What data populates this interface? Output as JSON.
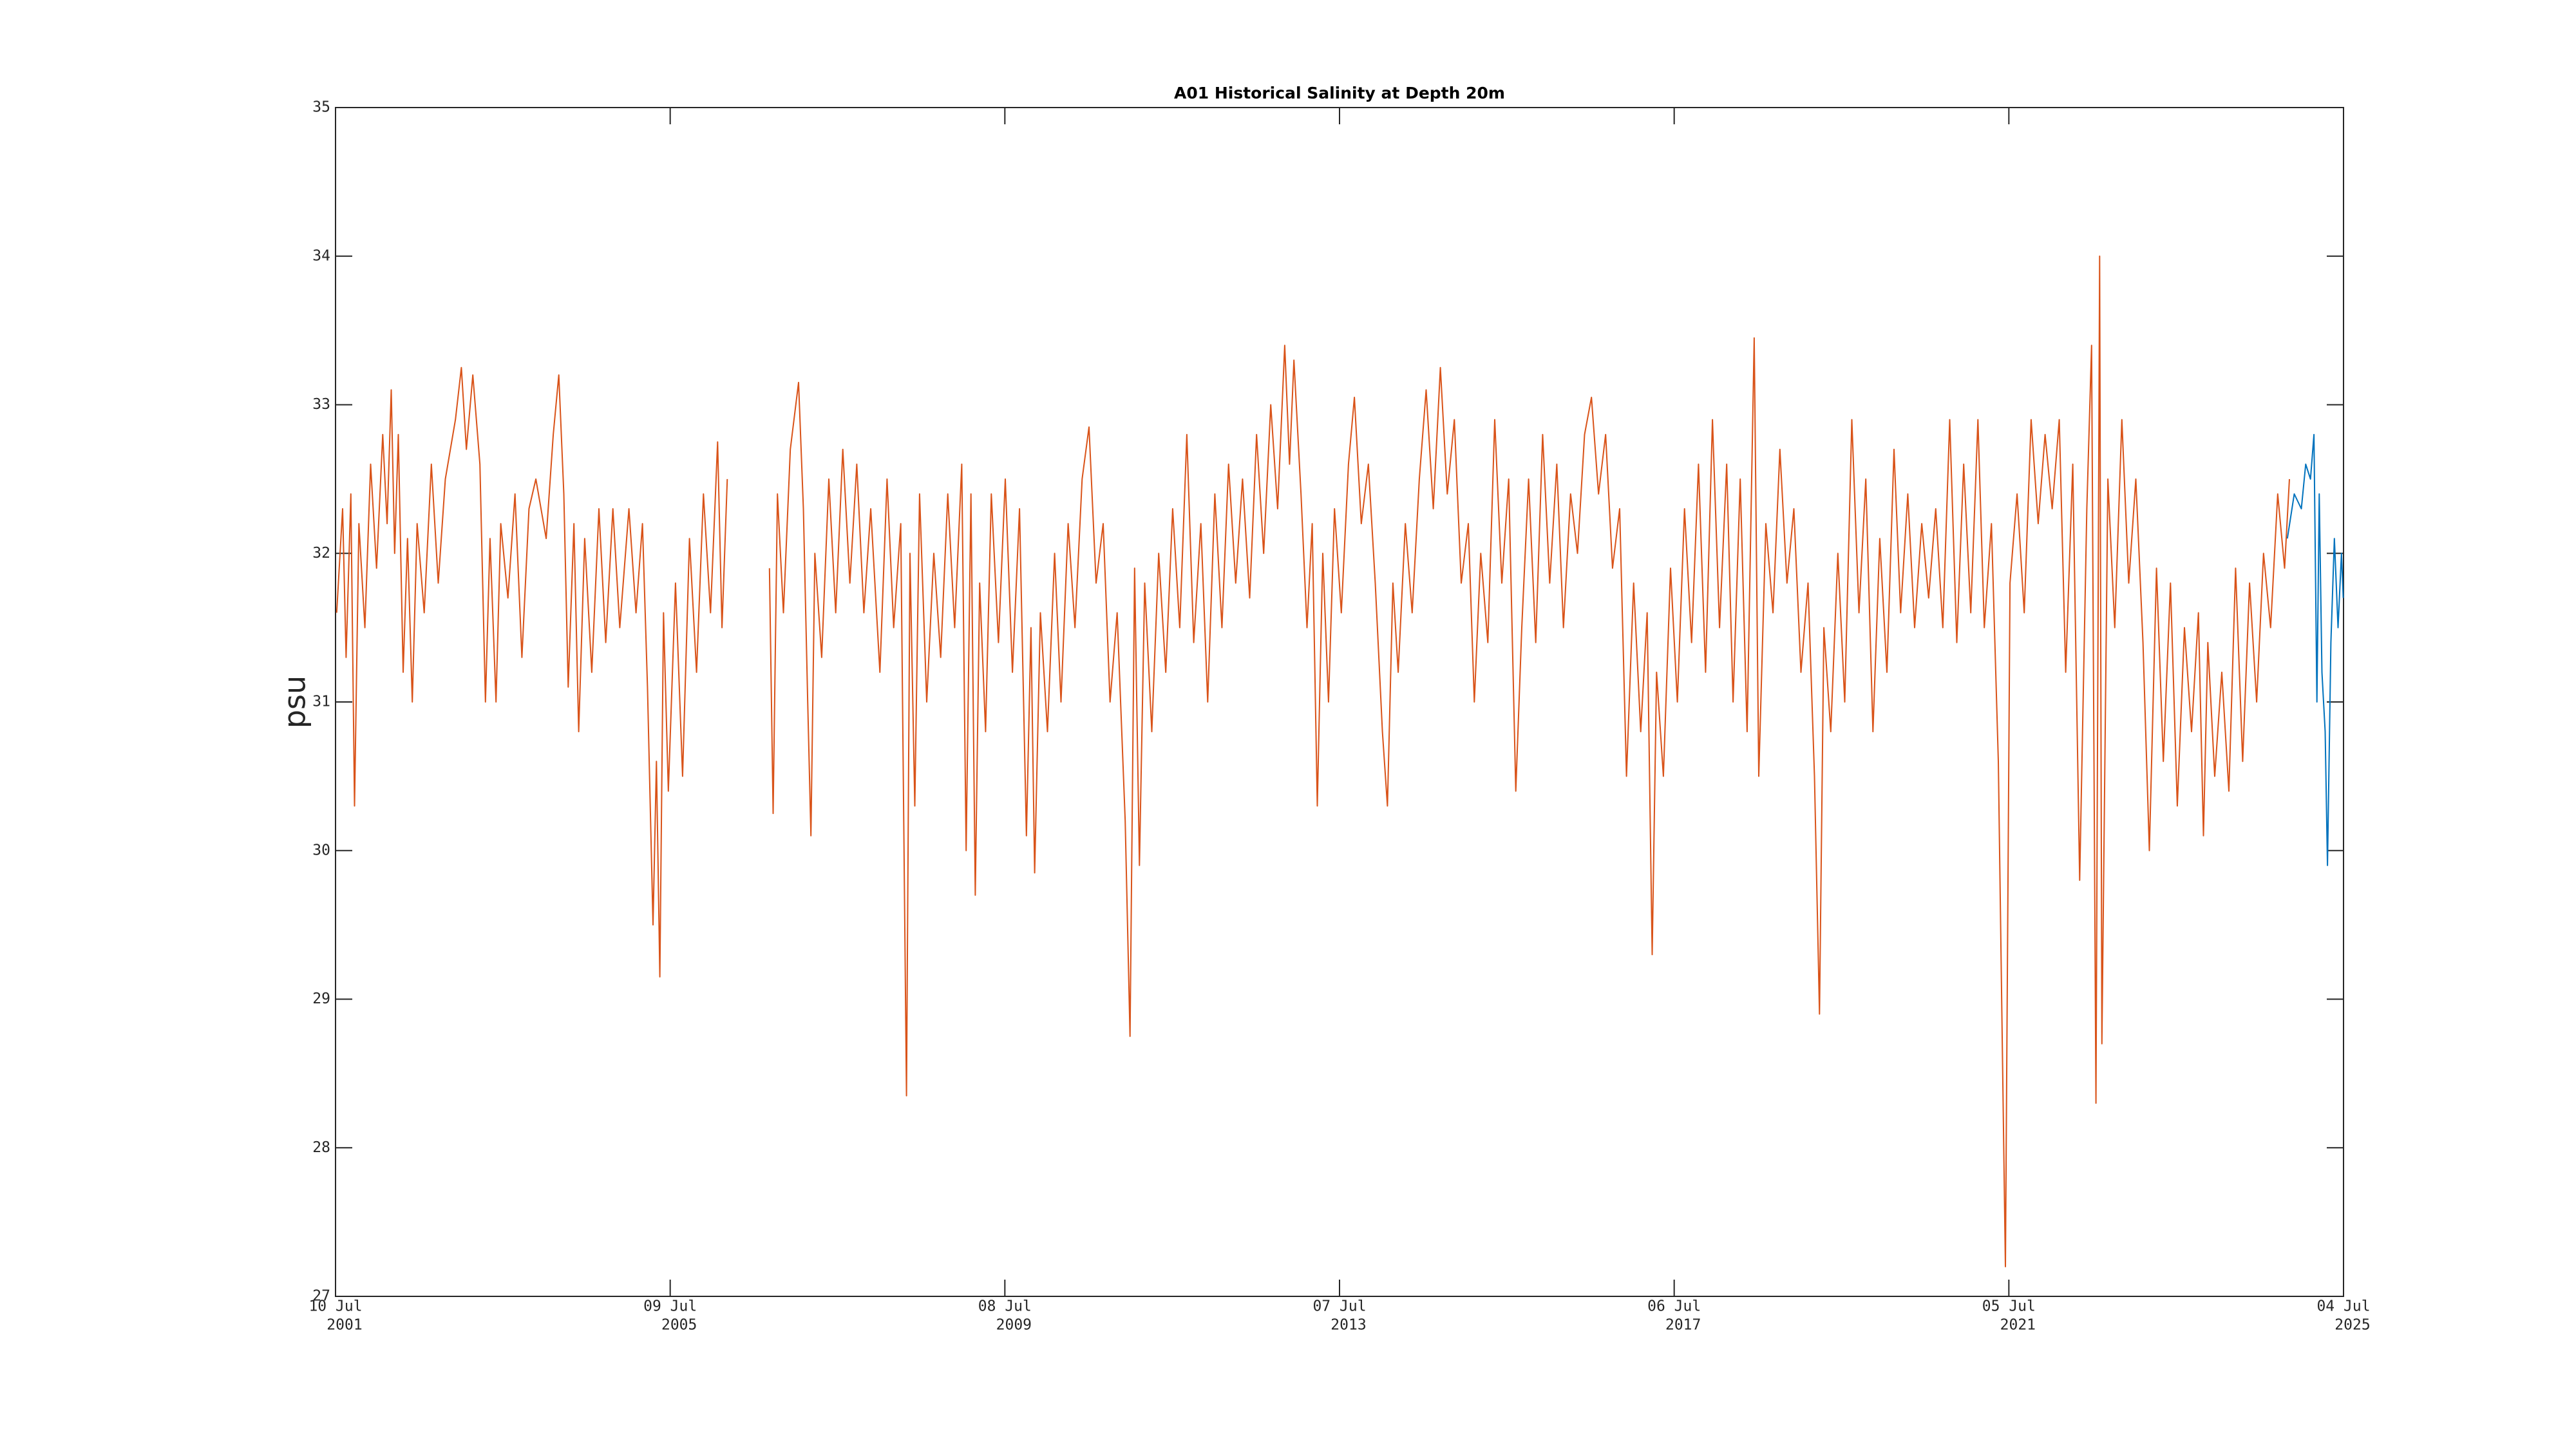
{
  "chart_data": {
    "type": "line",
    "title": "A01 Historical Salinity at Depth 20m",
    "y_label": "psu",
    "xlim": [
      "2001-07-10",
      "2025-07-04"
    ],
    "xticks": [
      {
        "value": "2001-07-10",
        "label": [
          "10 Jul",
          "2001"
        ]
      },
      {
        "value": "2005-07-09",
        "label": [
          "09 Jul",
          "2005"
        ]
      },
      {
        "value": "2009-07-08",
        "label": [
          "08 Jul",
          "2009"
        ]
      },
      {
        "value": "2013-07-07",
        "label": [
          "07 Jul",
          "2013"
        ]
      },
      {
        "value": "2017-07-06",
        "label": [
          "06 Jul",
          "2017"
        ]
      },
      {
        "value": "2021-07-05",
        "label": [
          "05 Jul",
          "2021"
        ]
      },
      {
        "value": "2025-07-04",
        "label": [
          "04 Jul",
          "2025"
        ]
      }
    ],
    "ylim": [
      27,
      35
    ],
    "yticks": [
      27,
      28,
      29,
      30,
      31,
      32,
      33,
      34,
      35
    ],
    "grid": false,
    "series": [
      {
        "color": "#D95319",
        "x": [
          "2001-07-15",
          "2001-08-10",
          "2001-08-25",
          "2001-09-15",
          "2001-10-01",
          "2001-10-20",
          "2001-11-15",
          "2001-12-10",
          "2002-01-05",
          "2002-02-01",
          "2002-02-20",
          "2002-03-10",
          "2002-03-25",
          "2002-04-10",
          "2002-05-01",
          "2002-05-20",
          "2002-06-10",
          "2002-07-01",
          "2002-08-01",
          "2002-09-01",
          "2002-10-01",
          "2002-11-01",
          "2002-12-15",
          "2003-01-10",
          "2003-02-01",
          "2003-03-01",
          "2003-04-01",
          "2003-04-25",
          "2003-05-15",
          "2003-06-10",
          "2003-07-01",
          "2003-08-01",
          "2003-09-01",
          "2003-10-01",
          "2003-11-01",
          "2003-12-01",
          "2004-01-15",
          "2004-02-15",
          "2004-03-10",
          "2004-04-01",
          "2004-04-20",
          "2004-05-15",
          "2004-06-05",
          "2004-07-01",
          "2004-08-01",
          "2004-09-01",
          "2004-10-01",
          "2004-11-01",
          "2004-12-01",
          "2005-01-10",
          "2005-02-10",
          "2005-03-10",
          "2005-04-01",
          "2005-04-25",
          "2005-05-10",
          "2005-05-25",
          "2005-06-10",
          "2005-07-01",
          "2005-08-01",
          "2005-09-01",
          "2005-10-01",
          "2005-11-01",
          "2005-12-01",
          "2006-01-01",
          "2006-02-01",
          "2006-02-20",
          "2006-03-15",
          "2006-05-15",
          "2006-09-15",
          "2006-10-01",
          "2006-10-20",
          "2006-11-15",
          "2006-12-15",
          "2007-01-20",
          "2007-02-10",
          "2007-03-01",
          "2007-03-15",
          "2007-04-01",
          "2007-05-01",
          "2007-06-01",
          "2007-07-01",
          "2007-08-01",
          "2007-09-01",
          "2007-10-01",
          "2007-11-01",
          "2007-12-01",
          "2008-01-10",
          "2008-02-10",
          "2008-03-10",
          "2008-04-10",
          "2008-05-05",
          "2008-05-20",
          "2008-06-10",
          "2008-07-01",
          "2008-08-01",
          "2008-09-01",
          "2008-10-01",
          "2008-11-01",
          "2008-12-01",
          "2009-01-01",
          "2009-01-20",
          "2009-02-10",
          "2009-03-01",
          "2009-03-20",
          "2009-04-15",
          "2009-05-10",
          "2009-06-10",
          "2009-07-10",
          "2009-08-10",
          "2009-09-10",
          "2009-10-10",
          "2009-10-30",
          "2009-11-15",
          "2009-12-10",
          "2010-01-10",
          "2010-02-10",
          "2010-03-10",
          "2010-04-10",
          "2010-05-10",
          "2010-06-10",
          "2010-07-10",
          "2010-08-10",
          "2010-09-10",
          "2010-10-10",
          "2010-11-10",
          "2010-12-15",
          "2011-01-05",
          "2011-01-25",
          "2011-02-15",
          "2011-03-10",
          "2011-04-10",
          "2011-05-10",
          "2011-06-10",
          "2011-07-10",
          "2011-08-10",
          "2011-09-10",
          "2011-10-10",
          "2011-11-10",
          "2011-12-10",
          "2012-01-10",
          "2012-02-10",
          "2012-03-10",
          "2012-04-10",
          "2012-05-10",
          "2012-06-10",
          "2012-07-10",
          "2012-08-10",
          "2012-09-10",
          "2012-10-10",
          "2012-11-10",
          "2012-12-01",
          "2012-12-20",
          "2013-01-20",
          "2013-02-15",
          "2013-03-10",
          "2013-04-01",
          "2013-04-25",
          "2013-05-20",
          "2013-06-15",
          "2013-07-15",
          "2013-08-15",
          "2013-09-10",
          "2013-10-10",
          "2013-11-10",
          "2013-12-10",
          "2014-01-10",
          "2014-02-01",
          "2014-02-25",
          "2014-03-20",
          "2014-04-20",
          "2014-05-20",
          "2014-06-20",
          "2014-07-20",
          "2014-08-20",
          "2014-09-20",
          "2014-10-20",
          "2014-11-20",
          "2014-12-20",
          "2015-01-20",
          "2015-02-15",
          "2015-03-15",
          "2015-04-15",
          "2015-05-15",
          "2015-06-15",
          "2015-07-15",
          "2015-08-15",
          "2015-09-10",
          "2015-10-10",
          "2015-11-10",
          "2015-12-10",
          "2016-01-10",
          "2016-02-10",
          "2016-03-10",
          "2016-04-10",
          "2016-05-10",
          "2016-06-10",
          "2016-07-10",
          "2016-08-10",
          "2016-09-10",
          "2016-10-10",
          "2016-11-10",
          "2016-12-10",
          "2017-01-10",
          "2017-02-10",
          "2017-03-10",
          "2017-04-01",
          "2017-04-20",
          "2017-05-20",
          "2017-06-20",
          "2017-07-20",
          "2017-08-20",
          "2017-09-20",
          "2017-10-20",
          "2017-11-20",
          "2017-12-20",
          "2018-01-20",
          "2018-02-20",
          "2018-03-20",
          "2018-04-20",
          "2018-05-20",
          "2018-06-20",
          "2018-07-10",
          "2018-08-10",
          "2018-09-10",
          "2018-10-10",
          "2018-11-10",
          "2018-12-10",
          "2019-01-10",
          "2019-02-10",
          "2019-03-10",
          "2019-04-01",
          "2019-04-20",
          "2019-05-20",
          "2019-06-20",
          "2019-07-20",
          "2019-08-20",
          "2019-09-20",
          "2019-10-20",
          "2019-11-20",
          "2019-12-20",
          "2020-01-20",
          "2020-02-20",
          "2020-03-20",
          "2020-04-20",
          "2020-05-20",
          "2020-06-20",
          "2020-07-20",
          "2020-08-20",
          "2020-09-20",
          "2020-10-20",
          "2020-11-20",
          "2020-12-20",
          "2021-01-20",
          "2021-02-20",
          "2021-03-20",
          "2021-04-20",
          "2021-05-20",
          "2021-06-20",
          "2021-07-10",
          "2021-08-10",
          "2021-09-10",
          "2021-10-10",
          "2021-11-10",
          "2021-12-10",
          "2022-01-10",
          "2022-02-10",
          "2022-03-10",
          "2022-04-10",
          "2022-05-10",
          "2022-06-10",
          "2022-07-01",
          "2022-07-20",
          "2022-08-05",
          "2022-08-15",
          "2022-09-10",
          "2022-10-10",
          "2022-11-10",
          "2022-12-10",
          "2023-01-10",
          "2023-02-10",
          "2023-03-10",
          "2023-04-10",
          "2023-05-10",
          "2023-06-10",
          "2023-07-10",
          "2023-08-10",
          "2023-09-10",
          "2023-10-10",
          "2023-11-01",
          "2023-11-20",
          "2023-12-20",
          "2024-01-20",
          "2024-02-20",
          "2024-03-20",
          "2024-04-20",
          "2024-05-20",
          "2024-06-20",
          "2024-07-20",
          "2024-08-20",
          "2024-09-20",
          "2024-10-20",
          "2024-11-10"
        ],
        "values": [
          31.6,
          32.3,
          31.3,
          32.4,
          30.3,
          32.2,
          31.5,
          32.6,
          31.9,
          32.8,
          32.2,
          33.1,
          32.0,
          32.8,
          31.2,
          32.1,
          31.0,
          32.2,
          31.6,
          32.6,
          31.8,
          32.5,
          32.9,
          33.25,
          32.7,
          33.2,
          32.6,
          31.0,
          32.1,
          31.0,
          32.2,
          31.7,
          32.4,
          31.3,
          32.3,
          32.5,
          32.1,
          32.8,
          33.2,
          32.4,
          31.1,
          32.2,
          30.8,
          32.1,
          31.2,
          32.3,
          31.4,
          32.3,
          31.5,
          32.3,
          31.6,
          32.2,
          31.1,
          29.5,
          30.6,
          29.15,
          31.6,
          30.4,
          31.8,
          30.5,
          32.1,
          31.2,
          32.4,
          31.6,
          32.75,
          31.5,
          32.5,
          null,
          31.9,
          30.25,
          32.4,
          31.6,
          32.7,
          33.15,
          32.3,
          31.0,
          30.1,
          32.0,
          31.3,
          32.5,
          31.6,
          32.7,
          31.8,
          32.6,
          31.6,
          32.3,
          31.2,
          32.5,
          31.5,
          32.2,
          28.35,
          32.0,
          30.3,
          32.4,
          31.0,
          32.0,
          31.3,
          32.4,
          31.5,
          32.6,
          30.0,
          32.4,
          29.7,
          31.8,
          30.8,
          32.4,
          31.4,
          32.5,
          31.2,
          32.3,
          30.1,
          31.5,
          29.85,
          31.6,
          30.8,
          32.0,
          31.0,
          32.2,
          31.5,
          32.5,
          32.85,
          31.8,
          32.2,
          31.0,
          31.6,
          30.2,
          28.75,
          31.9,
          29.9,
          31.8,
          30.8,
          32.0,
          31.2,
          32.3,
          31.5,
          32.8,
          31.4,
          32.2,
          31.0,
          32.4,
          31.5,
          32.6,
          31.8,
          32.5,
          31.7,
          32.8,
          32.0,
          33.0,
          32.3,
          33.4,
          32.6,
          33.3,
          32.4,
          31.5,
          32.2,
          30.3,
          32.0,
          31.0,
          32.3,
          31.6,
          32.6,
          33.05,
          32.2,
          32.6,
          31.8,
          30.8,
          30.3,
          31.8,
          31.2,
          32.2,
          31.6,
          32.5,
          33.1,
          32.3,
          33.25,
          32.4,
          32.9,
          31.8,
          32.2,
          31.0,
          32.0,
          31.4,
          32.9,
          31.8,
          32.5,
          30.4,
          31.5,
          32.5,
          31.4,
          32.8,
          31.8,
          32.6,
          31.5,
          32.4,
          32.0,
          32.8,
          33.05,
          32.4,
          32.8,
          31.9,
          32.3,
          30.5,
          31.8,
          30.8,
          31.6,
          29.3,
          31.2,
          30.5,
          31.9,
          31.0,
          32.3,
          31.4,
          32.6,
          31.2,
          32.9,
          31.5,
          32.6,
          31.0,
          32.5,
          30.8,
          33.45,
          30.5,
          32.2,
          31.6,
          32.7,
          31.8,
          32.3,
          31.2,
          31.8,
          30.5,
          28.9,
          31.5,
          30.8,
          32.0,
          31.0,
          32.9,
          31.6,
          32.5,
          30.8,
          32.1,
          31.2,
          32.7,
          31.6,
          32.4,
          31.5,
          32.2,
          31.7,
          32.3,
          31.5,
          32.9,
          31.4,
          32.6,
          31.6,
          32.9,
          31.5,
          32.2,
          30.6,
          27.2,
          31.8,
          32.4,
          31.6,
          32.9,
          32.2,
          32.8,
          32.3,
          32.9,
          31.2,
          32.6,
          29.8,
          32.3,
          33.4,
          28.3,
          34.0,
          28.7,
          32.5,
          31.5,
          32.9,
          31.8,
          32.5,
          31.4,
          30.0,
          31.9,
          30.6,
          31.8,
          30.3,
          31.5,
          30.8,
          31.6,
          30.1,
          31.4,
          30.5,
          31.2,
          30.4,
          31.9,
          30.6,
          31.8,
          31.0,
          32.0,
          31.5,
          32.4,
          31.9,
          32.5
        ]
      },
      {
        "color": "#0072BD",
        "x": [
          "2024-11-01",
          "2024-12-01",
          "2025-01-01",
          "2025-01-20",
          "2025-02-10",
          "2025-02-25",
          "2025-03-10",
          "2025-03-20",
          "2025-04-01",
          "2025-04-15",
          "2025-04-25",
          "2025-05-10",
          "2025-05-25",
          "2025-06-10",
          "2025-06-25",
          "2025-07-03"
        ],
        "values": [
          32.1,
          32.4,
          32.3,
          32.6,
          32.5,
          32.8,
          31.0,
          32.4,
          31.2,
          30.8,
          29.9,
          31.4,
          32.1,
          31.5,
          32.0,
          31.7
        ]
      }
    ]
  }
}
